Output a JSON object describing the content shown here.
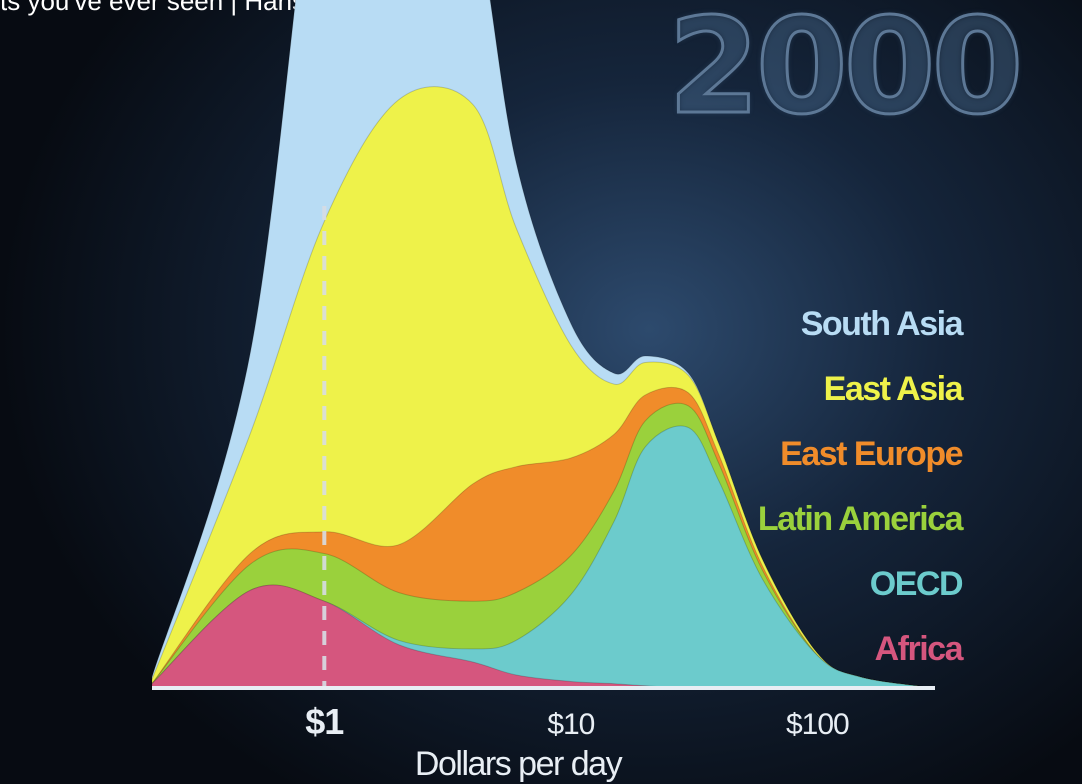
{
  "video": {
    "title": "ts you've ever seen | Hans Rosling"
  },
  "year_label": "2000",
  "colors": {
    "south_asia": "#b8dcf4",
    "east_asia": "#eef24a",
    "east_europe": "#f08c2a",
    "latin_america": "#9ad13c",
    "oecd": "#6ccbcc",
    "africa": "#d5567e",
    "poverty_line": "#d8dde4",
    "axis": "#e8eef4"
  },
  "chart_data": {
    "type": "area",
    "title": "",
    "xlabel": "Dollars per day",
    "ylabel": "",
    "x_scale": "log",
    "xlim": [
      0.2,
      300
    ],
    "x_ticks": [
      {
        "value": 1,
        "label": "$1"
      },
      {
        "value": 10,
        "label": "$10"
      },
      {
        "value": 100,
        "label": "$100"
      }
    ],
    "poverty_line_x": 1,
    "legend_position": "right",
    "stacked": true,
    "x": [
      0.2,
      0.5,
      1,
      2,
      4,
      6,
      10,
      15,
      20,
      30,
      40,
      60,
      100,
      150,
      300
    ],
    "series": [
      {
        "name": "Africa",
        "color_key": "africa",
        "values": [
          2,
          45,
          40,
          20,
          12,
          6,
          3,
          2,
          1,
          0,
          0,
          0,
          0,
          0,
          0
        ]
      },
      {
        "name": "OECD",
        "color_key": "oecd",
        "values": [
          0,
          0,
          0,
          2,
          6,
          16,
          40,
          75,
          110,
          120,
          95,
          50,
          15,
          5,
          0
        ]
      },
      {
        "name": "Latin America",
        "color_key": "latin_america",
        "values": [
          0,
          12,
          22,
          22,
          22,
          22,
          18,
          14,
          12,
          10,
          8,
          4,
          0,
          0,
          0
        ]
      },
      {
        "name": "East Europe",
        "color_key": "east_europe",
        "values": [
          0,
          5,
          10,
          22,
          54,
          58,
          45,
          26,
          12,
          6,
          4,
          2,
          0,
          0,
          0
        ]
      },
      {
        "name": "East Asia",
        "color_key": "east_asia",
        "values": [
          2,
          55,
          143,
          205,
          175,
          110,
          52,
          23,
          15,
          8,
          5,
          3,
          1,
          0,
          0
        ]
      },
      {
        "name": "South Asia",
        "color_key": "south_asia",
        "values": [
          1,
          37,
          200,
          227,
          95,
          30,
          10,
          5,
          3,
          1,
          0,
          0,
          0,
          0,
          0
        ]
      }
    ]
  },
  "legend": [
    {
      "label": "South Asia",
      "color_key": "south_asia"
    },
    {
      "label": "East Asia",
      "color_key": "east_asia"
    },
    {
      "label": "East Europe",
      "color_key": "east_europe"
    },
    {
      "label": "Latin America",
      "color_key": "latin_america"
    },
    {
      "label": "OECD",
      "color_key": "oecd"
    },
    {
      "label": "Africa",
      "color_key": "africa"
    }
  ]
}
